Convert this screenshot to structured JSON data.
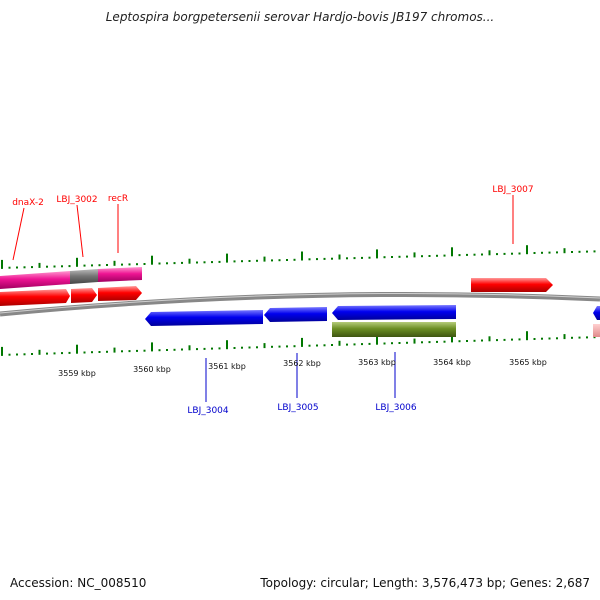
{
  "title": "Leptospira borgpetersenii serovar Hardjo-bovis JB197 chromos...",
  "footer": {
    "accession": "Accession: NC_008510",
    "stats": "Topology: circular; Length: 3,576,473 bp; Genes: 2,687"
  },
  "colors": {
    "forward_gene": "#ff0000",
    "reverse_gene": "#0000ee",
    "pink_feature": "#ee1493",
    "green_feature": "#6b8e23",
    "backbone": "#888888",
    "tick": "#007700"
  },
  "kbp_labels": [
    "3559 kbp",
    "3560 kbp",
    "3561 kbp",
    "3562 kbp",
    "3563 kbp",
    "3564 kbp",
    "3565 kbp"
  ],
  "gene_labels": {
    "forward": [
      "dnaX-2",
      "LBJ_3002",
      "recR",
      "LBJ_3007"
    ],
    "reverse": [
      "LBJ_3004",
      "LBJ_3005",
      "LBJ_3006"
    ]
  }
}
